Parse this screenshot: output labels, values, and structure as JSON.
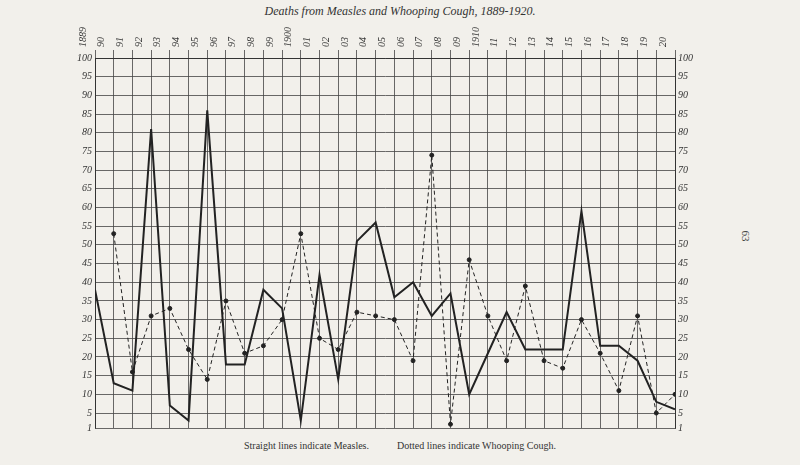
{
  "chart_data": {
    "type": "line",
    "title": "Deaths from Measles and Whooping Cough, 1889-1920.",
    "annotations": [
      "Straight lines indicate Measles.",
      "Dotted lines indicate Whooping Cough.",
      "63"
    ],
    "categories": [
      "1889",
      "90",
      "91",
      "92",
      "93",
      "94",
      "95",
      "96",
      "97",
      "98",
      "99",
      "1900",
      "01",
      "02",
      "03",
      "04",
      "05",
      "06",
      "07",
      "08",
      "09",
      "1910",
      "11",
      "12",
      "13",
      "14",
      "15",
      "16",
      "17",
      "18",
      "19",
      "20"
    ],
    "series": [
      {
        "name": "Measles",
        "color": "#222222",
        "line_style": "solid",
        "marker": "none",
        "values": [
          38,
          13,
          11,
          81,
          7,
          3,
          86,
          18,
          18,
          38,
          33,
          3,
          42,
          14,
          51,
          56,
          36,
          40,
          31,
          37,
          10,
          21,
          32,
          22,
          22,
          22,
          59,
          23,
          23,
          19,
          8,
          6
        ]
      },
      {
        "name": "Whooping Cough",
        "color": "#222222",
        "line_style": "dashed",
        "marker": "circle",
        "values": [
          null,
          53,
          16,
          31,
          33,
          22,
          14,
          35,
          21,
          23,
          30,
          53,
          25,
          22,
          32,
          31,
          30,
          19,
          74,
          2,
          46,
          31,
          19,
          39,
          19,
          17,
          30,
          21,
          11,
          31,
          5,
          10
        ]
      }
    ],
    "ylim": [
      1,
      100
    ],
    "yticks": [
      1,
      5,
      10,
      15,
      20,
      25,
      30,
      35,
      40,
      45,
      50,
      55,
      60,
      65,
      70,
      75,
      80,
      85,
      90,
      95,
      100
    ],
    "grid": true,
    "legend": false
  }
}
